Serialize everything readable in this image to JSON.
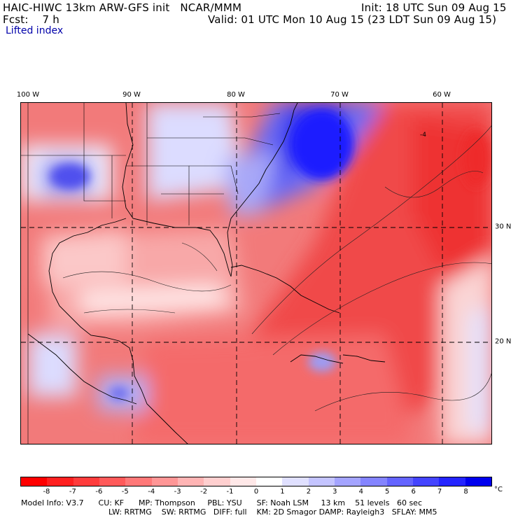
{
  "header": {
    "title": "HAIC-HIWC 13km ARW-GFS init   NCAR/MMM",
    "init": "Init: 18 UTC Sun 09 Aug 15",
    "fcst": "Fcst:    7 h",
    "valid": "Valid: 01 UTC Mon 10 Aug 15 (23 LDT Sun 09 Aug 15)",
    "field": "Lifted index"
  },
  "map": {
    "lon_labels": [
      "100 W",
      "90 W",
      "80 W",
      "70 W",
      "60 W"
    ],
    "lat_labels": [
      "30 N",
      "20 N"
    ],
    "contour_label": "-4",
    "colors": {
      "strong_negative": "#ff2020",
      "weak_negative": "#ffc0c0",
      "neutral": "#ffffff",
      "weak_positive": "#c8c8ff",
      "strong_positive": "#1a1aff"
    }
  },
  "colorbar": {
    "ticks": [
      "-8",
      "-7",
      "-6",
      "-5",
      "-4",
      "-3",
      "-2",
      "-1",
      "0",
      "1",
      "2",
      "3",
      "4",
      "5",
      "6",
      "7",
      "8"
    ],
    "unit": "°C",
    "colors": [
      "#ff0000",
      "#ff2020",
      "#ff3c3c",
      "#ff5a5a",
      "#ff7878",
      "#ff9696",
      "#ffb4b4",
      "#ffcfcf",
      "#ffe8e8",
      "#ffffff",
      "#e0e0ff",
      "#c4c4ff",
      "#a4a4ff",
      "#8484ff",
      "#6464ff",
      "#4444ff",
      "#2424ff",
      "#0000ee"
    ]
  },
  "model_info": {
    "line1": "Model Info: V3.7      CU: KF      MP: Thompson     PBL: YSU      SF: Noah LSM     13 km    51 levels   60 sec",
    "line2": "LW: RRTMG    SW: RRTMG   DIFF: full    KM: 2D Smagor DAMP: Rayleigh3   SFLAY: MM5"
  }
}
